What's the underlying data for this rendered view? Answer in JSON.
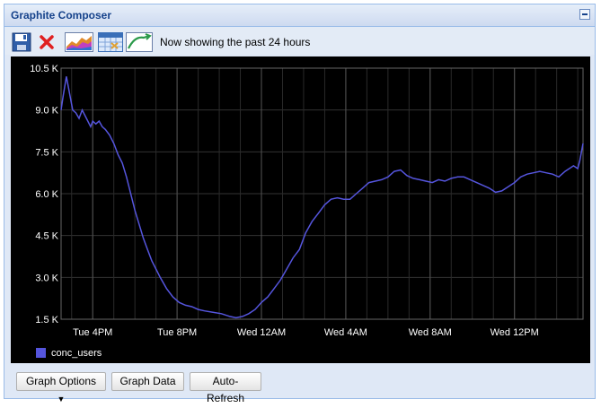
{
  "window": {
    "title": "Graphite Composer"
  },
  "toolbar": {
    "status_text": "Now showing the past 24 hours",
    "icons": [
      "save-icon",
      "delete-icon",
      "graph-icon",
      "calendar-icon",
      "recent-icon"
    ]
  },
  "bottom": {
    "graph_options_label": "Graph Options",
    "graph_data_label": "Graph Data",
    "auto_refresh_label": "Auto-Refresh"
  },
  "colors": {
    "series": "#5555dd",
    "background": "#000000",
    "grid": "#333333",
    "text": "#ffffff"
  },
  "chart_data": {
    "type": "line",
    "title": "",
    "xlabel": "",
    "ylabel": "",
    "ylim": [
      1500,
      10500
    ],
    "yticks": [
      1500,
      3000,
      4500,
      6000,
      7500,
      9000,
      10500
    ],
    "ytick_labels": [
      "1.5 K",
      "3.0 K",
      "4.5 K",
      "6.0 K",
      "7.5 K",
      "9.0 K",
      "10.5 K"
    ],
    "xlim": [
      "Tue 2:30PM",
      "Wed 3:15PM"
    ],
    "xtick_labels": [
      "Tue  4PM",
      "Tue  8PM",
      "Wed 12AM",
      "Wed  4AM",
      "Wed  8AM",
      "Wed 12PM"
    ],
    "grid": true,
    "legend": "bottom-left",
    "series": [
      {
        "name": "conc_users",
        "color": "#5555dd",
        "x_hours": [
          0,
          0.1,
          0.25,
          0.4,
          0.55,
          0.7,
          0.85,
          1.0,
          1.2,
          1.4,
          1.5,
          1.65,
          1.8,
          1.95,
          2.1,
          2.3,
          2.5,
          2.7,
          2.9,
          3.1,
          3.3,
          3.5,
          3.7,
          3.9,
          4.1,
          4.3,
          4.5,
          4.7,
          5.0,
          5.3,
          5.6,
          5.9,
          6.2,
          6.5,
          6.8,
          7.2,
          7.6,
          8.0,
          8.3,
          8.6,
          8.9,
          9.2,
          9.5,
          9.8,
          10.1,
          10.4,
          10.7,
          11.0,
          11.3,
          11.6,
          11.9,
          12.2,
          12.5,
          12.8,
          13.1,
          13.4,
          13.7,
          14.0,
          14.3,
          14.6,
          14.9,
          15.2,
          15.5,
          15.8,
          16.1,
          16.4,
          16.7,
          17.0,
          17.3,
          17.6,
          17.9,
          18.2,
          18.5,
          18.8,
          19.1,
          19.4,
          19.7,
          20.0,
          20.3,
          20.6,
          20.9,
          21.2,
          21.5,
          21.8,
          22.1,
          22.4,
          22.7,
          23.0,
          23.3,
          23.6,
          23.9,
          24.1,
          24.3,
          24.5,
          24.6,
          24.75
        ],
        "values": [
          9000,
          9500,
          10200,
          9600,
          9000,
          8900,
          8700,
          9000,
          8700,
          8400,
          8600,
          8500,
          8600,
          8400,
          8300,
          8100,
          7800,
          7400,
          7100,
          6600,
          6000,
          5400,
          4900,
          4400,
          4000,
          3600,
          3300,
          3000,
          2600,
          2300,
          2100,
          2000,
          1950,
          1850,
          1800,
          1750,
          1700,
          1600,
          1550,
          1600,
          1700,
          1850,
          2100,
          2300,
          2600,
          2900,
          3300,
          3700,
          4000,
          4600,
          5000,
          5300,
          5600,
          5800,
          5850,
          5800,
          5800,
          6000,
          6200,
          6400,
          6450,
          6500,
          6600,
          6800,
          6850,
          6650,
          6550,
          6500,
          6450,
          6400,
          6500,
          6450,
          6550,
          6600,
          6600,
          6500,
          6400,
          6300,
          6200,
          6050,
          6100,
          6250,
          6400,
          6600,
          6700,
          6750,
          6800,
          6750,
          6700,
          6600,
          6800,
          6900,
          7000,
          6900,
          7200,
          7800
        ]
      }
    ]
  }
}
